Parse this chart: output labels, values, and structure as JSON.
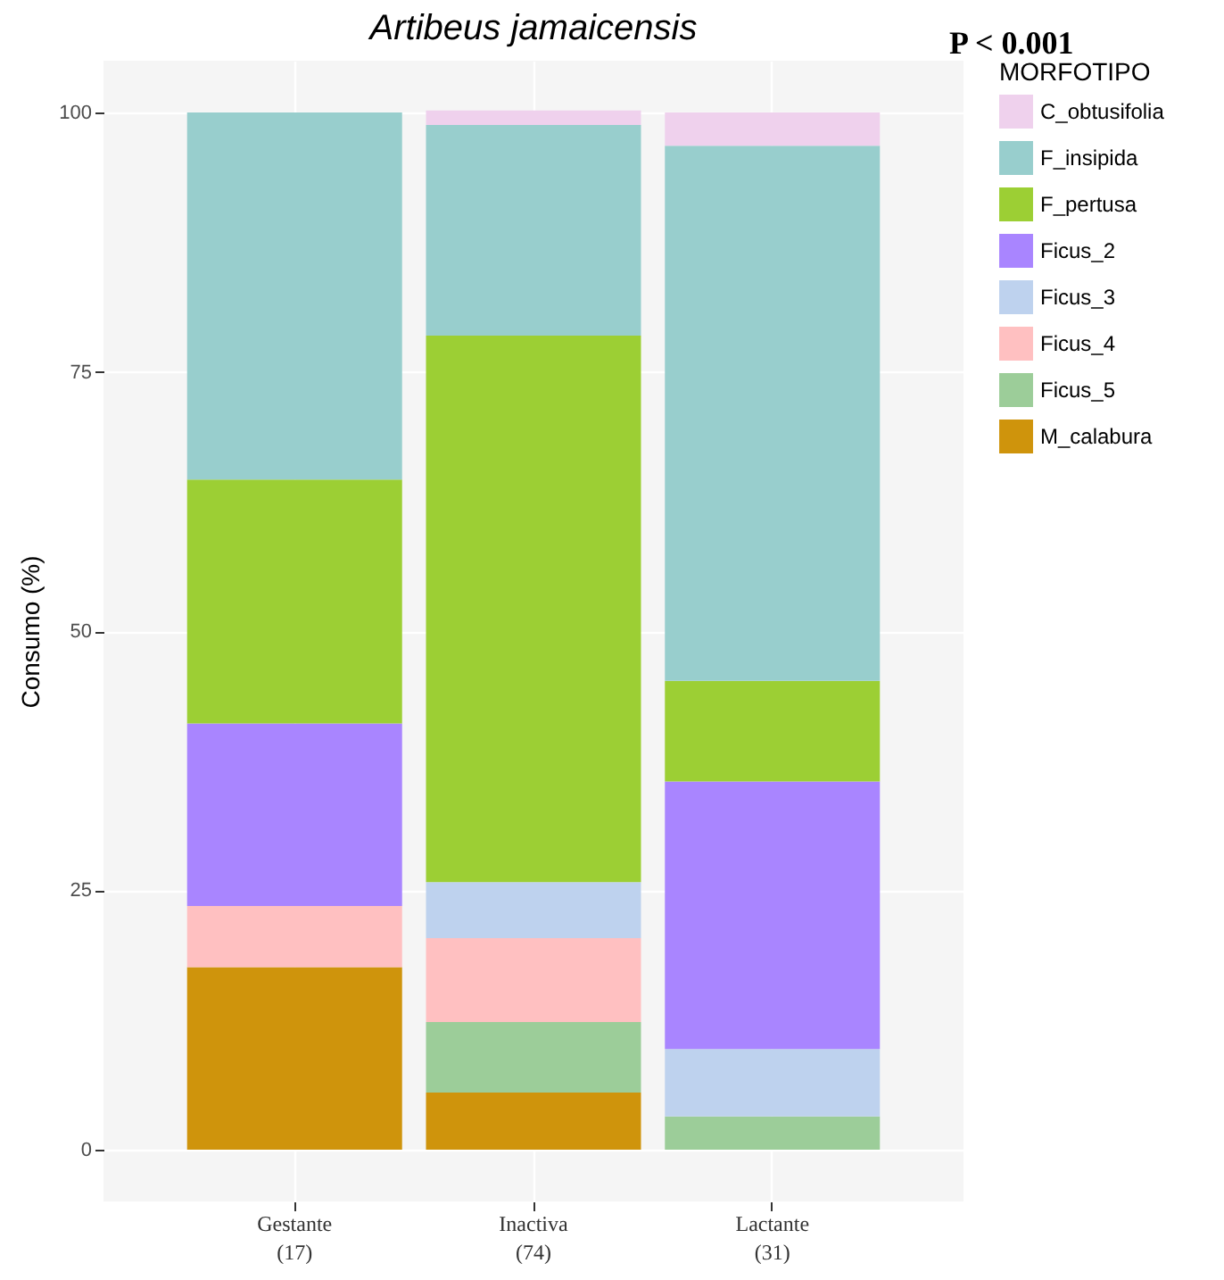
{
  "chart_data": {
    "type": "bar",
    "title": "Artibeus jamaicensis",
    "ylabel": "Consumo (%)",
    "legend_title": "MORFOTIPO",
    "annotations": [
      "P < 0.001"
    ],
    "categories": [
      "Gestante\n(17)",
      "Inactiva\n(74)",
      "Lactante\n(31)"
    ],
    "stacked": true,
    "series": [
      {
        "name": "M_calabura",
        "color": "#cf940c",
        "values": [
          17.6,
          5.5,
          null
        ]
      },
      {
        "name": "Ficus_5",
        "color": "#9ccd99",
        "values": [
          null,
          6.8,
          3.2
        ]
      },
      {
        "name": "Ficus_4",
        "color": "#ffc0c1",
        "values": [
          5.9,
          8.1,
          null
        ]
      },
      {
        "name": "Ficus_3",
        "color": "#bed2ee",
        "values": [
          null,
          5.4,
          6.5
        ]
      },
      {
        "name": "Ficus_2",
        "color": "#a985ff",
        "values": [
          17.6,
          null,
          25.8
        ]
      },
      {
        "name": "F_pertusa",
        "color": "#9ccf34",
        "values": [
          23.5,
          52.7,
          9.7
        ]
      },
      {
        "name": "F_insipida",
        "color": "#98cecd",
        "values": [
          35.4,
          20.3,
          51.6
        ]
      },
      {
        "name": "C_obtusifolia",
        "color": "#efd1ed",
        "values": [
          null,
          1.4,
          3.2
        ]
      }
    ],
    "ylim": [
      -5,
      105
    ],
    "yticks": [
      0,
      25,
      50,
      75,
      100
    ],
    "grid": true,
    "legend": "right"
  }
}
